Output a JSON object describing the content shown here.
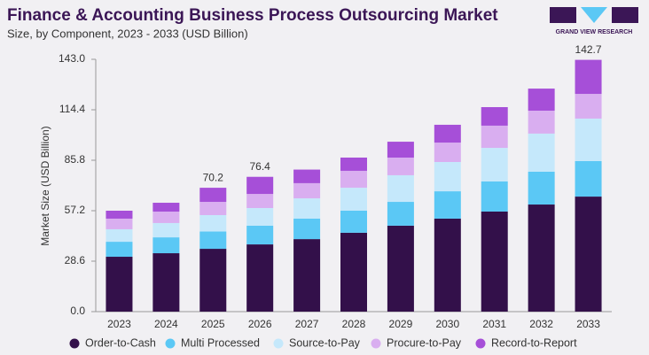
{
  "chart_data": {
    "type": "stacked_bar",
    "title": "Finance & Accounting Business Process Outsourcing Market",
    "subtitle": "Size, by Component, 2023 - 2033 (USD Billion)",
    "ylabel": "Market Size (USD Billion)",
    "logo": "GRAND VIEW RESEARCH",
    "categories": [
      "2023",
      "2024",
      "2025",
      "2026",
      "2027",
      "2028",
      "2029",
      "2030",
      "2031",
      "2032",
      "2033"
    ],
    "series": [
      {
        "name": "Order-to-Cash",
        "color": "#33104a",
        "values": [
          31.1,
          33.1,
          35.6,
          38.1,
          41.1,
          44.7,
          48.7,
          52.7,
          56.7,
          60.7,
          65.2
        ]
      },
      {
        "name": "Multi Processed",
        "color": "#5bc8f5",
        "values": [
          8.5,
          9.0,
          9.8,
          10.6,
          11.6,
          12.5,
          13.5,
          15.5,
          17.1,
          18.6,
          20.1
        ]
      },
      {
        "name": "Source-to-Pay",
        "color": "#c5e8fb",
        "values": [
          7.1,
          8.1,
          9.3,
          10.0,
          11.5,
          13.0,
          15.1,
          16.6,
          19.0,
          21.6,
          24.1
        ]
      },
      {
        "name": "Procure-to-Pay",
        "color": "#d9aef0",
        "values": [
          6.0,
          6.5,
          7.5,
          8.0,
          8.6,
          9.6,
          10.0,
          11.0,
          12.6,
          13.0,
          14.0
        ]
      },
      {
        "name": "Record-to-Report",
        "color": "#a64fd8",
        "values": [
          4.5,
          5.0,
          8.0,
          9.7,
          7.7,
          7.5,
          9.0,
          10.1,
          10.5,
          12.5,
          19.3
        ]
      }
    ],
    "annotations": [
      {
        "category": 2,
        "label": "70.2"
      },
      {
        "category": 3,
        "label": "76.4"
      },
      {
        "category": 10,
        "label": "142.7"
      }
    ],
    "ylim": [
      0,
      143
    ],
    "yticks": [
      {
        "value": 0,
        "label": "0.0"
      },
      28.6,
      57.2,
      85.8,
      114.4,
      {
        "value": 143,
        "label": "143.0"
      }
    ],
    "legend": "bottom"
  }
}
